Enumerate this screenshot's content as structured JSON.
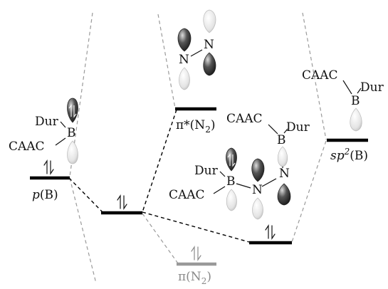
{
  "colors": {
    "level": "#000000",
    "level_faded": "#999999",
    "guide_dashed": "#9a9a9a",
    "corr_dashed": "#000000",
    "lobe_dark": "#2a2a2a",
    "lobe_light": "#e2e2e2",
    "text_faded": "#8a8a8a"
  },
  "levels": {
    "pB": {
      "label_prefix": "p",
      "label_suffix": "(B)"
    },
    "pi_star_N2": {
      "label_base": "π*(N",
      "label_sub": "2",
      "label_close": ")"
    },
    "sp2B": {
      "label_prefix": "sp",
      "label_sup": "2",
      "label_suffix": "(B)"
    },
    "pi_N2": {
      "label_base": "π(N",
      "label_sub": "2",
      "label_close": ")"
    }
  },
  "fragments": {
    "boryl_left": {
      "dur": "Dur",
      "caac": "CAAC",
      "b": "B"
    },
    "n2_top": {
      "n1": "N",
      "n2": "N"
    },
    "boryl_right": {
      "caac": "CAAC",
      "dur": "Dur",
      "b": "B"
    },
    "complex_mid": {
      "caac_b": "CAAC",
      "dur_b": "Dur",
      "b": "B",
      "n_a": "N",
      "n_b": "N",
      "dur_left": "Dur",
      "caac_left": "CAAC"
    }
  }
}
